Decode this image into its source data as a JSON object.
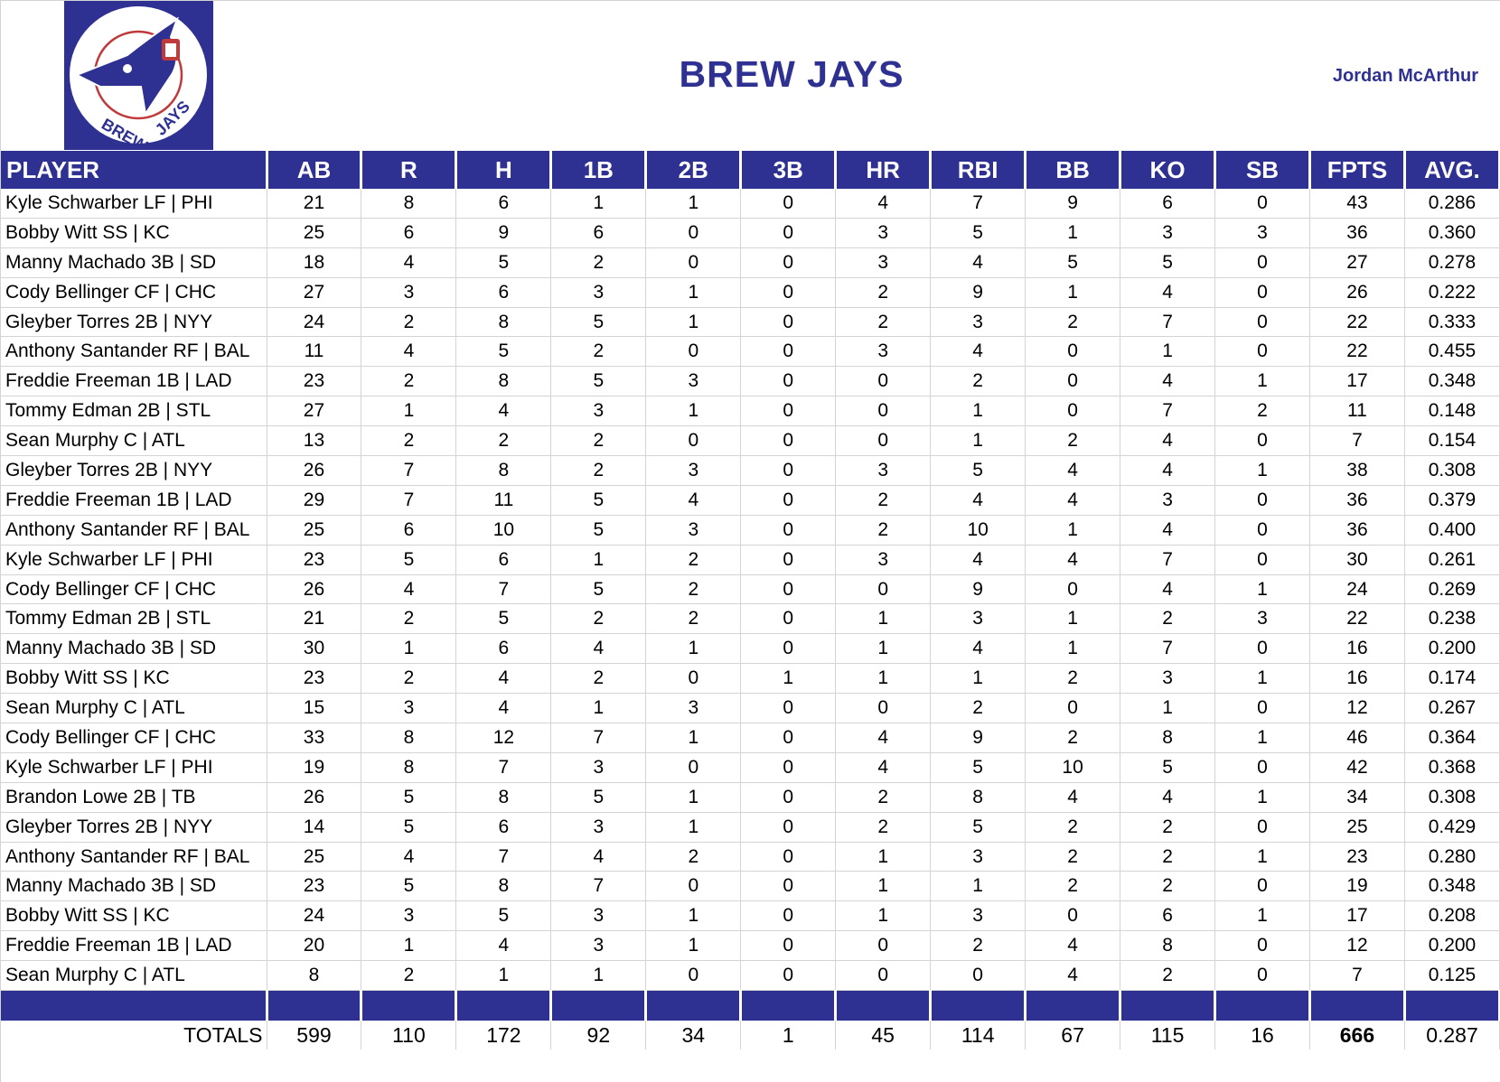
{
  "header": {
    "title": "BREW JAYS",
    "owner": "Jordan McArthur",
    "logo_text": "BREW JAYS"
  },
  "colors": {
    "brand": "#2e3192",
    "logo_accent": "#c0393b"
  },
  "columns": [
    "PLAYER",
    "AB",
    "R",
    "H",
    "1B",
    "2B",
    "3B",
    "HR",
    "RBI",
    "BB",
    "KO",
    "SB",
    "FPTS",
    "AVG."
  ],
  "rows": [
    [
      "Kyle Schwarber LF | PHI",
      "21",
      "8",
      "6",
      "1",
      "1",
      "0",
      "4",
      "7",
      "9",
      "6",
      "0",
      "43",
      "0.286"
    ],
    [
      "Bobby Witt SS | KC",
      "25",
      "6",
      "9",
      "6",
      "0",
      "0",
      "3",
      "5",
      "1",
      "3",
      "3",
      "36",
      "0.360"
    ],
    [
      "Manny Machado 3B | SD",
      "18",
      "4",
      "5",
      "2",
      "0",
      "0",
      "3",
      "4",
      "5",
      "5",
      "0",
      "27",
      "0.278"
    ],
    [
      "Cody Bellinger CF | CHC",
      "27",
      "3",
      "6",
      "3",
      "1",
      "0",
      "2",
      "9",
      "1",
      "4",
      "0",
      "26",
      "0.222"
    ],
    [
      "Gleyber Torres 2B | NYY",
      "24",
      "2",
      "8",
      "5",
      "1",
      "0",
      "2",
      "3",
      "2",
      "7",
      "0",
      "22",
      "0.333"
    ],
    [
      "Anthony Santander RF | BAL",
      "11",
      "4",
      "5",
      "2",
      "0",
      "0",
      "3",
      "4",
      "0",
      "1",
      "0",
      "22",
      "0.455"
    ],
    [
      "Freddie Freeman 1B | LAD",
      "23",
      "2",
      "8",
      "5",
      "3",
      "0",
      "0",
      "2",
      "0",
      "4",
      "1",
      "17",
      "0.348"
    ],
    [
      "Tommy Edman 2B | STL",
      "27",
      "1",
      "4",
      "3",
      "1",
      "0",
      "0",
      "1",
      "0",
      "7",
      "2",
      "11",
      "0.148"
    ],
    [
      "Sean Murphy C | ATL",
      "13",
      "2",
      "2",
      "2",
      "0",
      "0",
      "0",
      "1",
      "2",
      "4",
      "0",
      "7",
      "0.154"
    ],
    [
      "Gleyber Torres 2B | NYY",
      "26",
      "7",
      "8",
      "2",
      "3",
      "0",
      "3",
      "5",
      "4",
      "4",
      "1",
      "38",
      "0.308"
    ],
    [
      "Freddie Freeman 1B | LAD",
      "29",
      "7",
      "11",
      "5",
      "4",
      "0",
      "2",
      "4",
      "4",
      "3",
      "0",
      "36",
      "0.379"
    ],
    [
      "Anthony Santander RF | BAL",
      "25",
      "6",
      "10",
      "5",
      "3",
      "0",
      "2",
      "10",
      "1",
      "4",
      "0",
      "36",
      "0.400"
    ],
    [
      "Kyle Schwarber LF | PHI",
      "23",
      "5",
      "6",
      "1",
      "2",
      "0",
      "3",
      "4",
      "4",
      "7",
      "0",
      "30",
      "0.261"
    ],
    [
      "Cody Bellinger CF | CHC",
      "26",
      "4",
      "7",
      "5",
      "2",
      "0",
      "0",
      "9",
      "0",
      "4",
      "1",
      "24",
      "0.269"
    ],
    [
      "Tommy Edman 2B | STL",
      "21",
      "2",
      "5",
      "2",
      "2",
      "0",
      "1",
      "3",
      "1",
      "2",
      "3",
      "22",
      "0.238"
    ],
    [
      "Manny Machado 3B | SD",
      "30",
      "1",
      "6",
      "4",
      "1",
      "0",
      "1",
      "4",
      "1",
      "7",
      "0",
      "16",
      "0.200"
    ],
    [
      "Bobby Witt SS | KC",
      "23",
      "2",
      "4",
      "2",
      "0",
      "1",
      "1",
      "1",
      "2",
      "3",
      "1",
      "16",
      "0.174"
    ],
    [
      "Sean Murphy C | ATL",
      "15",
      "3",
      "4",
      "1",
      "3",
      "0",
      "0",
      "2",
      "0",
      "1",
      "0",
      "12",
      "0.267"
    ],
    [
      "Cody Bellinger CF | CHC",
      "33",
      "8",
      "12",
      "7",
      "1",
      "0",
      "4",
      "9",
      "2",
      "8",
      "1",
      "46",
      "0.364"
    ],
    [
      "Kyle Schwarber LF | PHI",
      "19",
      "8",
      "7",
      "3",
      "0",
      "0",
      "4",
      "5",
      "10",
      "5",
      "0",
      "42",
      "0.368"
    ],
    [
      "Brandon Lowe 2B | TB",
      "26",
      "5",
      "8",
      "5",
      "1",
      "0",
      "2",
      "8",
      "4",
      "4",
      "1",
      "34",
      "0.308"
    ],
    [
      "Gleyber Torres 2B | NYY",
      "14",
      "5",
      "6",
      "3",
      "1",
      "0",
      "2",
      "5",
      "2",
      "2",
      "0",
      "25",
      "0.429"
    ],
    [
      "Anthony Santander RF | BAL",
      "25",
      "4",
      "7",
      "4",
      "2",
      "0",
      "1",
      "3",
      "2",
      "2",
      "1",
      "23",
      "0.280"
    ],
    [
      "Manny Machado 3B | SD",
      "23",
      "5",
      "8",
      "7",
      "0",
      "0",
      "1",
      "1",
      "2",
      "2",
      "0",
      "19",
      "0.348"
    ],
    [
      "Bobby Witt SS | KC",
      "24",
      "3",
      "5",
      "3",
      "1",
      "0",
      "1",
      "3",
      "0",
      "6",
      "1",
      "17",
      "0.208"
    ],
    [
      "Freddie Freeman 1B | LAD",
      "20",
      "1",
      "4",
      "3",
      "1",
      "0",
      "0",
      "2",
      "4",
      "8",
      "0",
      "12",
      "0.200"
    ],
    [
      "Sean Murphy C | ATL",
      "8",
      "2",
      "1",
      "1",
      "0",
      "0",
      "0",
      "0",
      "4",
      "2",
      "0",
      "7",
      "0.125"
    ]
  ],
  "totals": [
    "TOTALS",
    "599",
    "110",
    "172",
    "92",
    "34",
    "1",
    "45",
    "114",
    "67",
    "115",
    "16",
    "666",
    "0.287"
  ]
}
